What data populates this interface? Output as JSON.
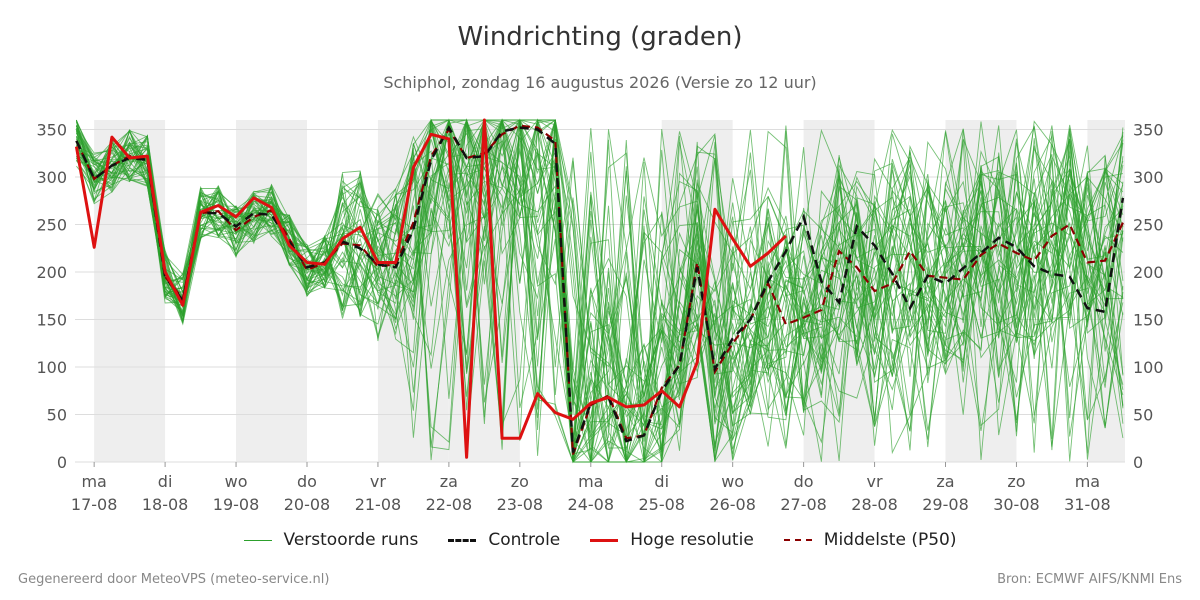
{
  "title": "Windrichting (graden)",
  "subtitle": "Schiphol, zondag 16 augustus 2026 (Versie zo 12 uur)",
  "footer_left": "Gegenereerd door MeteoVPS (meteo-service.nl)",
  "footer_right": "Bron: ECMWF AIFS/KNMI Ens",
  "colors": {
    "ensemble": "#2ca02c",
    "control": "#111111",
    "hires": "#dd1111",
    "median": "#8b0000",
    "weekend_band": "#eeeeee",
    "grid": "#dddddd"
  },
  "legend": [
    {
      "label": "Verstoorde runs",
      "key": "ensemble",
      "style": "thin"
    },
    {
      "label": "Controle",
      "key": "control",
      "style": "dashed"
    },
    {
      "label": "Hoge resolutie",
      "key": "hires",
      "style": "solid"
    },
    {
      "label": "Middelste (P50)",
      "key": "median",
      "style": "dashed"
    }
  ],
  "chart_data": {
    "type": "line",
    "title": "Windrichting (graden)",
    "ylabel": "",
    "ylim": [
      0,
      360
    ],
    "yticks": [
      0,
      50,
      100,
      150,
      200,
      250,
      300,
      350
    ],
    "xlim": [
      -0.27,
      14.53
    ],
    "days": [
      {
        "weekday": "ma",
        "date": "17-08"
      },
      {
        "weekday": "di",
        "date": "18-08"
      },
      {
        "weekday": "wo",
        "date": "19-08"
      },
      {
        "weekday": "do",
        "date": "20-08"
      },
      {
        "weekday": "vr",
        "date": "21-08"
      },
      {
        "weekday": "za",
        "date": "22-08"
      },
      {
        "weekday": "zo",
        "date": "23-08"
      },
      {
        "weekday": "ma",
        "date": "24-08"
      },
      {
        "weekday": "di",
        "date": "25-08"
      },
      {
        "weekday": "wo",
        "date": "26-08"
      },
      {
        "weekday": "do",
        "date": "27-08"
      },
      {
        "weekday": "vr",
        "date": "28-08"
      },
      {
        "weekday": "za",
        "date": "29-08"
      },
      {
        "weekday": "zo",
        "date": "30-08"
      },
      {
        "weekday": "ma",
        "date": "31-08"
      }
    ],
    "shaded_days": [
      [
        0.0,
        1.0
      ],
      [
        2.0,
        3.0
      ],
      [
        4.0,
        5.0
      ],
      [
        5.0,
        6.0
      ],
      [
        8.0,
        9.0
      ],
      [
        10.0,
        11.0
      ],
      [
        12.0,
        13.0
      ],
      [
        14.0,
        14.53
      ]
    ],
    "series": [
      {
        "name": "Hoge resolutie",
        "x": [
          -0.25,
          0.0,
          0.25,
          0.5,
          0.75,
          1.0,
          1.25,
          1.5,
          1.75,
          2.0,
          2.25,
          2.5,
          2.75,
          3.0,
          3.25,
          3.5,
          3.75,
          4.0,
          4.25,
          4.5,
          4.75,
          5.0,
          5.25,
          5.5,
          5.75,
          6.0,
          6.25,
          6.5,
          6.75,
          7.0,
          7.25,
          7.5,
          7.75,
          8.0,
          8.25,
          8.5,
          8.75,
          9.0,
          9.25,
          9.5,
          9.75
        ],
        "y": [
          332,
          226,
          342,
          320,
          322,
          200,
          165,
          263,
          270,
          258,
          278,
          268,
          228,
          210,
          208,
          235,
          247,
          210,
          210,
          310,
          345,
          340,
          5,
          360,
          25,
          25,
          72,
          52,
          45,
          62,
          68,
          58,
          60,
          75,
          58,
          105,
          266,
          235,
          206,
          220,
          238
        ]
      },
      {
        "name": "Controle",
        "x": [
          -0.25,
          0.0,
          0.25,
          0.5,
          0.75,
          1.0,
          1.25,
          1.5,
          1.75,
          2.0,
          2.25,
          2.5,
          2.75,
          3.0,
          3.25,
          3.5,
          3.75,
          4.0,
          4.25,
          4.5,
          4.75,
          5.0,
          5.25,
          5.5,
          5.75,
          6.0,
          6.25,
          6.5,
          6.75,
          7.0,
          7.25,
          7.5,
          7.75,
          8.0,
          8.25,
          8.5,
          8.75,
          9.0,
          9.25,
          9.5,
          9.75,
          10.0,
          10.25,
          10.5,
          10.75,
          11.0,
          11.25,
          11.5,
          11.75,
          12.0,
          12.25,
          12.5,
          12.75,
          13.0,
          13.25,
          13.5,
          13.75,
          14.0,
          14.25,
          14.5
        ],
        "y": [
          338,
          298,
          312,
          320,
          318,
          195,
          170,
          262,
          262,
          248,
          262,
          260,
          232,
          205,
          210,
          232,
          225,
          208,
          205,
          245,
          318,
          352,
          320,
          322,
          348,
          352,
          350,
          335,
          10,
          62,
          68,
          22,
          28,
          75,
          102,
          205,
          98,
          130,
          150,
          190,
          222,
          258,
          190,
          168,
          248,
          228,
          198,
          162,
          196,
          188,
          204,
          220,
          236,
          226,
          206,
          198,
          195,
          162,
          158,
          278
        ]
      },
      {
        "name": "Middelste (P50)",
        "x": [
          -0.25,
          0.0,
          0.25,
          0.5,
          0.75,
          1.0,
          1.25,
          1.5,
          1.75,
          2.0,
          2.25,
          2.5,
          2.75,
          3.0,
          3.25,
          3.5,
          3.75,
          4.0,
          4.25,
          4.5,
          4.75,
          5.0,
          5.25,
          5.5,
          5.75,
          6.0,
          6.25,
          6.5,
          6.75,
          7.0,
          7.25,
          7.5,
          7.75,
          8.0,
          8.25,
          8.5,
          8.75,
          9.0,
          9.25,
          9.5,
          9.75,
          10.0,
          10.25,
          10.5,
          10.75,
          11.0,
          11.25,
          11.5,
          11.75,
          12.0,
          12.25,
          12.5,
          12.75,
          13.0,
          13.25,
          13.5,
          13.75,
          14.0,
          14.25,
          14.5
        ],
        "y": [
          338,
          298,
          312,
          322,
          318,
          195,
          172,
          262,
          264,
          244,
          258,
          265,
          235,
          202,
          210,
          230,
          228,
          206,
          208,
          252,
          322,
          350,
          320,
          325,
          345,
          354,
          352,
          338,
          8,
          60,
          70,
          25,
          28,
          78,
          102,
          210,
          95,
          125,
          150,
          188,
          145,
          152,
          160,
          222,
          205,
          180,
          188,
          222,
          196,
          194,
          192,
          218,
          230,
          220,
          212,
          238,
          250,
          210,
          212,
          252
        ]
      }
    ],
    "ensemble_member_count": 50
  }
}
